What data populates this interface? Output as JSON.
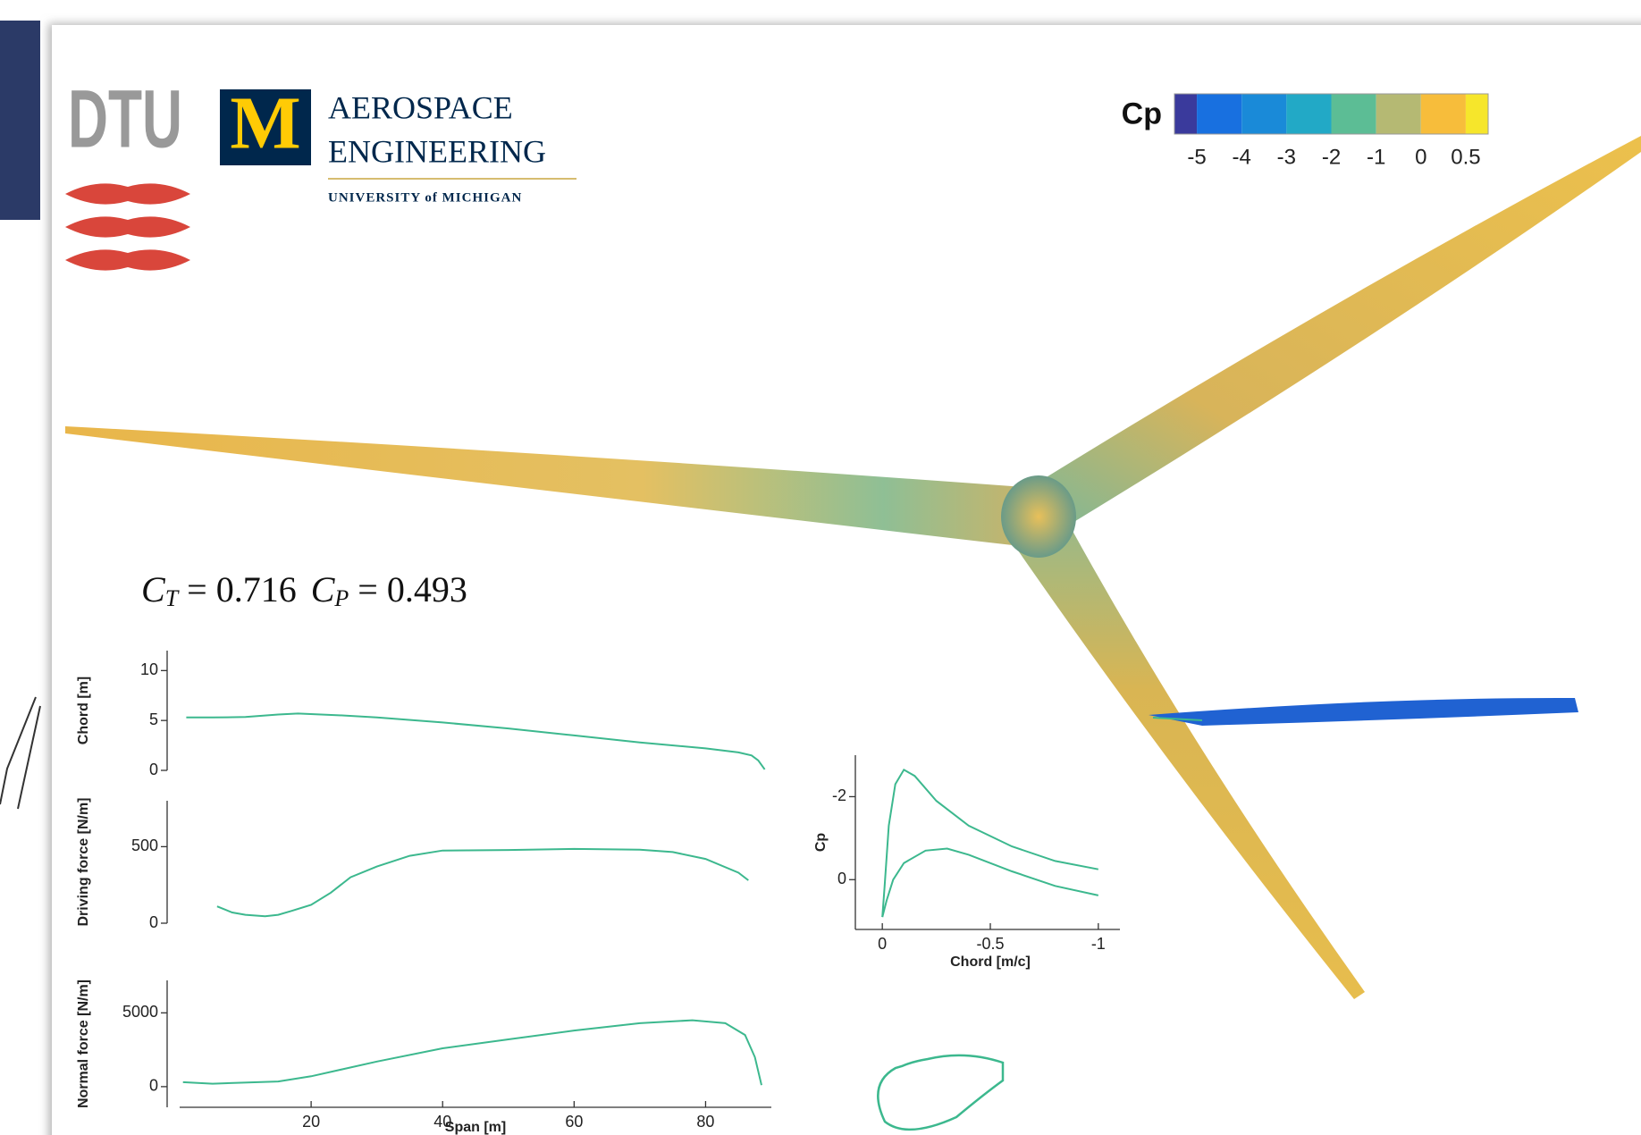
{
  "logos": {
    "dtu": "DTU",
    "michigan_mark": "M",
    "department_line1": "AEROSPACE",
    "department_line2": "ENGINEERING",
    "university": "UNIVERSITY of MICHIGAN"
  },
  "coefficients": [
    {
      "symbol": "C",
      "subscript": "T",
      "relation": "=",
      "value": 0.716
    },
    {
      "symbol": "C",
      "subscript": "P",
      "relation": "=",
      "value": 0.493
    }
  ],
  "chart_data": [
    {
      "type": "colorbar",
      "label": "Cp",
      "colors": [
        "#3a3a9c",
        "#1870e0",
        "#1a8ad8",
        "#22a9c6",
        "#5cbd95",
        "#b5b973",
        "#f7bd3b",
        "#f6e62b"
      ],
      "ticks": [
        -5,
        -4,
        -3,
        -2,
        -1,
        0,
        0.5
      ]
    },
    {
      "type": "line",
      "ylabel": "Chord [m]",
      "x": [
        1,
        5,
        10,
        15,
        18,
        25,
        30,
        40,
        50,
        60,
        70,
        80,
        85,
        87,
        88,
        89
      ],
      "series": [
        {
          "color": "#3cb88e",
          "values": [
            5.3,
            5.3,
            5.35,
            5.6,
            5.7,
            5.5,
            5.3,
            4.8,
            4.2,
            3.5,
            2.8,
            2.2,
            1.8,
            1.5,
            1.0,
            0.1
          ]
        }
      ],
      "xlim": [
        0,
        90
      ],
      "ylim": [
        0,
        12
      ],
      "yticks": [
        0,
        5,
        10
      ]
    },
    {
      "type": "line",
      "ylabel": "Driving force [N/m]",
      "x": [
        5.7,
        8,
        10,
        13,
        15,
        17,
        20,
        23,
        26,
        30,
        35,
        40,
        50,
        60,
        70,
        75,
        80,
        85,
        86.5
      ],
      "series": [
        {
          "color": "#3cb88e",
          "values": [
            110,
            70,
            55,
            45,
            55,
            80,
            120,
            200,
            300,
            370,
            440,
            475,
            478,
            485,
            480,
            465,
            420,
            330,
            280
          ]
        }
      ],
      "xlim": [
        0,
        90
      ],
      "ylim": [
        0,
        800
      ],
      "yticks": [
        0,
        500
      ]
    },
    {
      "type": "line",
      "ylabel": "Normal force [N/m]",
      "xlabel": "Span [m]",
      "x": [
        0.5,
        5,
        15,
        20,
        30,
        40,
        50,
        60,
        70,
        78,
        83,
        86,
        87.5,
        88.5
      ],
      "series": [
        {
          "color": "#3cb88e",
          "values": [
            300,
            200,
            350,
            700,
            1700,
            2600,
            3200,
            3800,
            4300,
            4500,
            4300,
            3500,
            2000,
            100
          ]
        }
      ],
      "xlim": [
        0,
        90
      ],
      "ylim": [
        -1400,
        7200
      ],
      "xticks": [
        20,
        40,
        60,
        80
      ],
      "yticks": [
        0,
        5000
      ]
    },
    {
      "type": "line",
      "xlabel": "Chord [m/c]",
      "ylabel": "Cp",
      "series": [
        {
          "color": "#3cb88e",
          "x": [
            0,
            -0.01,
            -0.03,
            -0.06,
            -0.1,
            -0.15,
            -0.25,
            -0.4,
            -0.6,
            -0.8,
            -1.0
          ],
          "values": [
            0.9,
            0.2,
            -1.3,
            -2.3,
            -2.65,
            -2.5,
            -1.9,
            -1.3,
            -0.8,
            -0.45,
            -0.25
          ]
        },
        {
          "color": "#3cb88e",
          "x": [
            0,
            -0.02,
            -0.05,
            -0.1,
            -0.2,
            -0.3,
            -0.4,
            -0.6,
            -0.8,
            -1.0
          ],
          "values": [
            0.9,
            0.5,
            0.0,
            -0.4,
            -0.7,
            -0.75,
            -0.6,
            -0.2,
            0.15,
            0.38
          ]
        }
      ],
      "xlim": [
        0.1,
        -1.1
      ],
      "ylim": [
        1.2,
        -3.0
      ],
      "xticks": [
        0,
        -0.5,
        -1
      ],
      "yticks": [
        0,
        -2
      ]
    }
  ]
}
